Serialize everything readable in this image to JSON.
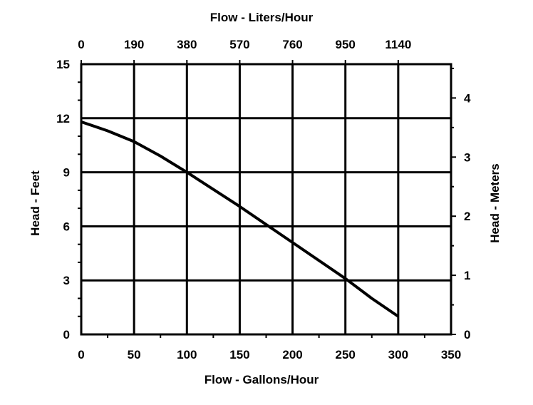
{
  "chart_data": {
    "type": "line",
    "title": "",
    "xlabel": "Flow - Gallons/Hour",
    "ylabel": "Head - Feet",
    "x2label": "Flow - Liters/Hour",
    "y2label": "Head - Meters",
    "xlim": [
      0,
      350
    ],
    "ylim": [
      0,
      15
    ],
    "x_ticks": [
      "0",
      "50",
      "100",
      "150",
      "200",
      "250",
      "300",
      "350"
    ],
    "y_ticks": [
      "0",
      "3",
      "6",
      "9",
      "12",
      "15"
    ],
    "x2_ticks": [
      "0",
      "190",
      "380",
      "570",
      "760",
      "950",
      "1140"
    ],
    "y2_ticks": [
      "0",
      "1",
      "2",
      "3",
      "4"
    ],
    "grid": true,
    "series": [
      {
        "x": [
          0,
          25,
          50,
          75,
          100,
          150,
          200,
          250,
          275,
          300
        ],
        "y": [
          11.8,
          11.3,
          10.7,
          9.9,
          9.0,
          7.1,
          5.1,
          3.1,
          2.0,
          1.0
        ]
      }
    ],
    "colors": {
      "line": "#000000",
      "grid": "#000000",
      "background": "#ffffff"
    }
  }
}
